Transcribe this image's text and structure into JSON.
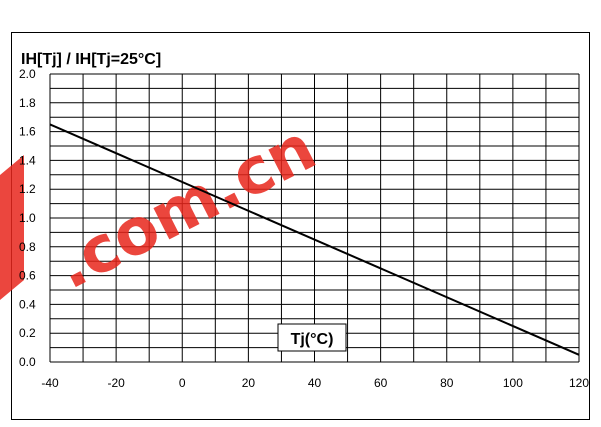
{
  "chart_data": {
    "type": "line",
    "ylabel": "IH[Tj] / IH[Tj=25°C]",
    "xlabel": "Tj(°C)",
    "x_ticks": [
      "-40",
      "-20",
      "0",
      "20",
      "40",
      "60",
      "80",
      "100",
      "120"
    ],
    "y_ticks": [
      "0.0",
      "0.2",
      "0.4",
      "0.6",
      "0.8",
      "1.0",
      "1.2",
      "1.4",
      "1.6",
      "1.8",
      "2.0"
    ],
    "xlim": [
      -40,
      120
    ],
    "ylim": [
      0.0,
      2.0
    ],
    "grid": true,
    "series": [
      {
        "x": [
          -40,
          120
        ],
        "y": [
          1.65,
          0.05
        ],
        "color": "#000000"
      }
    ]
  },
  "watermark": {
    "text": ".com.cn",
    "color": "#e8261c"
  }
}
